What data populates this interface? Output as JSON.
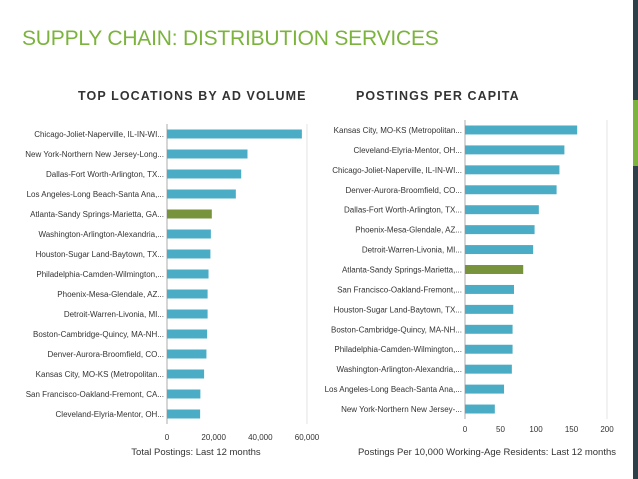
{
  "page": {
    "title": "SUPPLY CHAIN: DISTRIBUTION SERVICES"
  },
  "colors": {
    "bar": "#4bacc6",
    "highlight": "#77933c",
    "title": "#7bb33d"
  },
  "chart_data": [
    {
      "type": "bar",
      "orientation": "horizontal",
      "title": "TOP LOCATIONS BY AD VOLUME",
      "xlabel": "Total Postings: Last 12 months",
      "ylabel": "",
      "xlim": [
        0,
        60000
      ],
      "xticks": [
        "0",
        "20,000",
        "40,000",
        "60,000"
      ],
      "highlight": "Atlanta-Sandy Springs-Marietta, GA...",
      "categories": [
        "Chicago-Joliet-Naperville, IL-IN-WI...",
        "New York-Northern New Jersey-Long...",
        "Dallas-Fort Worth-Arlington, TX...",
        "Los Angeles-Long Beach-Santa Ana,...",
        "Atlanta-Sandy Springs-Marietta, GA...",
        "Washington-Arlington-Alexandria,...",
        "Houston-Sugar Land-Baytown, TX...",
        "Philadelphia-Camden-Wilmington,...",
        "Phoenix-Mesa-Glendale, AZ...",
        "Detroit-Warren-Livonia, MI...",
        "Boston-Cambridge-Quincy, MA-NH...",
        "Denver-Aurora-Broomfield, CO...",
        "Kansas City, MO-KS (Metropolitan...",
        "San Francisco-Oakland-Fremont, CA...",
        "Cleveland-Elyria-Mentor, OH..."
      ],
      "values": [
        57800,
        34500,
        31800,
        29500,
        19200,
        18800,
        18600,
        17800,
        17400,
        17400,
        17200,
        16900,
        15900,
        14300,
        14200
      ]
    },
    {
      "type": "bar",
      "orientation": "horizontal",
      "title": "POSTINGS PER CAPITA",
      "xlabel": "Postings Per 10,000 Working-Age Residents: Last 12 months",
      "ylabel": "",
      "xlim": [
        0,
        200
      ],
      "xticks": [
        "0",
        "50",
        "100",
        "150",
        "200"
      ],
      "highlight": "Atlanta-Sandy Springs-Marietta,...",
      "categories": [
        "Kansas City, MO-KS (Metropolitan...",
        "Cleveland-Elyria-Mentor, OH...",
        "Chicago-Joliet-Naperville, IL-IN-WI...",
        "Denver-Aurora-Broomfield, CO...",
        "Dallas-Fort Worth-Arlington, TX...",
        "Phoenix-Mesa-Glendale, AZ...",
        "Detroit-Warren-Livonia, MI...",
        "Atlanta-Sandy Springs-Marietta,...",
        "San Francisco-Oakland-Fremont,...",
        "Houston-Sugar Land-Baytown, TX...",
        "Boston-Cambridge-Quincy, MA-NH...",
        "Philadelphia-Camden-Wilmington,...",
        "Washington-Arlington-Alexandria,...",
        "Los Angeles-Long Beach-Santa Ana,...",
        "New York-Northern New Jersey-..."
      ],
      "values": [
        158,
        140,
        133,
        129,
        104,
        98,
        96,
        82,
        69,
        68,
        67,
        67,
        66,
        55,
        42
      ]
    }
  ]
}
